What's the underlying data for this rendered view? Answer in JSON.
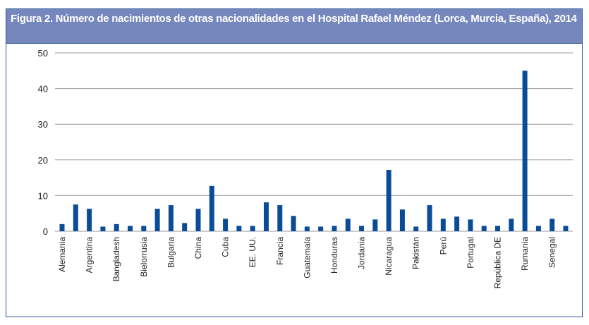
{
  "figure": {
    "title": "Figura 2. Número de nacimientos de otras nacionalidades en el Hospital Rafael Méndez (Lorca, Murcia, España), 2014"
  },
  "chart_data": {
    "type": "bar",
    "title": "",
    "xlabel": "",
    "ylabel": "",
    "ylim": [
      0,
      50
    ],
    "yticks": [
      "0",
      "10",
      "20",
      "30",
      "40",
      "50"
    ],
    "grid": true,
    "bar_color": "#0b4c99",
    "categories": [
      "Alemania",
      "",
      "Argentina",
      "",
      "Bangladesh",
      "",
      "Bielorrusia",
      "",
      "Bulgaria",
      "",
      "China",
      "",
      "Cuba",
      "",
      "EE. UU.",
      "",
      "Francia",
      "",
      "Guatemala",
      "",
      "Honduras",
      "",
      "Jordania",
      "",
      "Nicaragua",
      "",
      "Pakistán",
      "",
      "Perú",
      "",
      "Portugal",
      "",
      "República DE",
      "",
      "Rumania",
      "",
      "Senegal",
      ""
    ],
    "values": [
      2,
      7.5,
      6.3,
      1.3,
      2,
      1.5,
      1.5,
      6.3,
      7.3,
      2.3,
      6.3,
      12.7,
      3.5,
      1.5,
      1.5,
      8.1,
      7.3,
      4.3,
      1.3,
      1.3,
      1.5,
      3.5,
      1.5,
      3.3,
      17.2,
      6.1,
      1.3,
      7.3,
      3.5,
      4.1,
      3.3,
      1.5,
      1.5,
      3.5,
      45,
      1.5,
      3.5,
      1.5
    ]
  }
}
